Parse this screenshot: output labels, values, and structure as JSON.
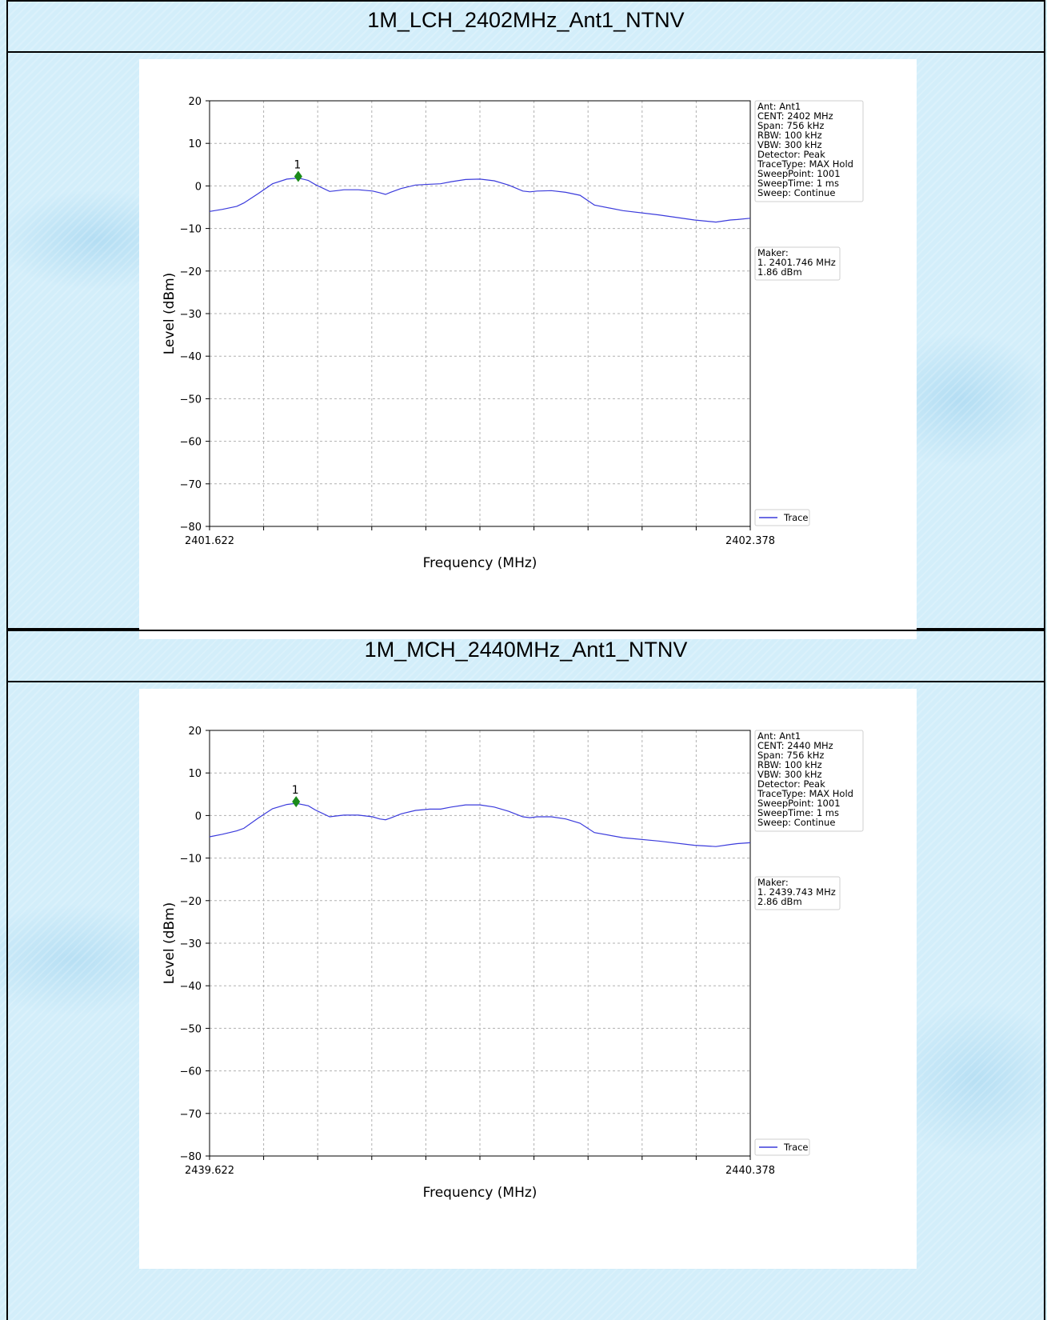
{
  "panels": [
    {
      "title": "1M_LCH_2402MHz_Ant1_NTNV",
      "chart_data": {
        "type": "line",
        "xlabel": "Frequency (MHz)",
        "ylabel": "Level (dBm)",
        "xlim": [
          2401.622,
          2402.378
        ],
        "ylim": [
          -80,
          20
        ],
        "x_tick_labels": [
          "2401.622",
          "2402.378"
        ],
        "y_ticks": [
          20,
          10,
          0,
          -10,
          -20,
          -30,
          -40,
          -50,
          -60,
          -70,
          -80
        ],
        "y_tick_labels": [
          "20",
          "10",
          "0",
          "−10",
          "−20",
          "−30",
          "−40",
          "−50",
          "−60",
          "−70",
          "−80"
        ],
        "x_grid_count": 10,
        "grid": true,
        "trace_color": "#3b3bdc",
        "marker_color": "#1a8a1a",
        "series": [
          {
            "name": "Trace",
            "x": [
              2401.622,
              2401.64,
              2401.66,
              2401.67,
              2401.69,
              2401.71,
              2401.73,
              2401.746,
              2401.76,
              2401.77,
              2401.79,
              2401.8,
              2401.81,
              2401.83,
              2401.85,
              2401.86,
              2401.868,
              2401.875,
              2401.89,
              2401.91,
              2401.93,
              2401.945,
              2401.96,
              2401.98,
              2402.0,
              2402.02,
              2402.04,
              2402.06,
              2402.07,
              2402.08,
              2402.1,
              2402.12,
              2402.14,
              2402.16,
              2402.2,
              2402.25,
              2402.3,
              2402.33,
              2402.35,
              2402.36,
              2402.378
            ],
            "y": [
              -6.0,
              -5.5,
              -4.8,
              -4.0,
              -1.8,
              0.5,
              1.6,
              1.86,
              1.3,
              0.3,
              -1.3,
              -1.1,
              -0.9,
              -0.9,
              -1.2,
              -1.6,
              -2.0,
              -1.5,
              -0.6,
              0.2,
              0.4,
              0.5,
              1.0,
              1.5,
              1.6,
              1.2,
              0.2,
              -1.2,
              -1.4,
              -1.2,
              -1.1,
              -1.5,
              -2.2,
              -4.5,
              -5.8,
              -6.8,
              -8.0,
              -8.5,
              -8.0,
              -7.9,
              -7.6
            ]
          }
        ],
        "marker": {
          "label": "1",
          "x": 2401.746,
          "y": 1.86
        },
        "info_box": [
          "Ant: Ant1",
          "CENT: 2402 MHz",
          "Span: 756 kHz",
          "RBW: 100 kHz",
          "VBW: 300 kHz",
          "Detector: Peak",
          "TraceType: MAX Hold",
          "SweepPoint: 1001",
          "SweepTime: 1 ms",
          "Sweep: Continue"
        ],
        "maker_box": [
          "Maker:",
          "1. 2401.746 MHz",
          "    1.86 dBm"
        ],
        "legend": {
          "label": "Trace",
          "position": "lower-right-outside"
        }
      }
    },
    {
      "title": "1M_MCH_2440MHz_Ant1_NTNV",
      "chart_data": {
        "type": "line",
        "xlabel": "Frequency (MHz)",
        "ylabel": "Level (dBm)",
        "xlim": [
          2439.622,
          2440.378
        ],
        "ylim": [
          -80,
          20
        ],
        "x_tick_labels": [
          "2439.622",
          "2440.378"
        ],
        "y_ticks": [
          20,
          10,
          0,
          -10,
          -20,
          -30,
          -40,
          -50,
          -60,
          -70,
          -80
        ],
        "y_tick_labels": [
          "20",
          "10",
          "0",
          "−10",
          "−20",
          "−30",
          "−40",
          "−50",
          "−60",
          "−70",
          "−80"
        ],
        "x_grid_count": 10,
        "grid": true,
        "trace_color": "#3b3bdc",
        "marker_color": "#1a8a1a",
        "series": [
          {
            "name": "Trace",
            "x": [
              2439.622,
              2439.64,
              2439.66,
              2439.67,
              2439.69,
              2439.71,
              2439.73,
              2439.743,
              2439.76,
              2439.77,
              2439.79,
              2439.8,
              2439.81,
              2439.83,
              2439.85,
              2439.86,
              2439.868,
              2439.875,
              2439.89,
              2439.91,
              2439.93,
              2439.945,
              2439.96,
              2439.98,
              2440.0,
              2440.02,
              2440.04,
              2440.06,
              2440.07,
              2440.08,
              2440.1,
              2440.12,
              2440.14,
              2440.16,
              2440.2,
              2440.25,
              2440.3,
              2440.33,
              2440.35,
              2440.36,
              2440.378
            ],
            "y": [
              -5.0,
              -4.4,
              -3.6,
              -3.0,
              -0.6,
              1.6,
              2.6,
              2.86,
              2.3,
              1.3,
              -0.3,
              -0.1,
              0.1,
              0.1,
              -0.3,
              -0.8,
              -1.0,
              -0.6,
              0.4,
              1.2,
              1.5,
              1.5,
              2.0,
              2.5,
              2.5,
              2.0,
              1.0,
              -0.3,
              -0.5,
              -0.3,
              -0.3,
              -0.8,
              -1.8,
              -4.0,
              -5.2,
              -6.0,
              -7.0,
              -7.3,
              -6.8,
              -6.6,
              -6.4
            ]
          }
        ],
        "marker": {
          "label": "1",
          "x": 2439.743,
          "y": 2.86
        },
        "info_box": [
          "Ant: Ant1",
          "CENT: 2440 MHz",
          "Span: 756 kHz",
          "RBW: 100 kHz",
          "VBW: 300 kHz",
          "Detector: Peak",
          "TraceType: MAX Hold",
          "SweepPoint: 1001",
          "SweepTime: 1 ms",
          "Sweep: Continue"
        ],
        "maker_box": [
          "Maker:",
          "1. 2439.743 MHz",
          "    2.86 dBm"
        ],
        "legend": {
          "label": "Trace",
          "position": "lower-right-outside"
        }
      }
    }
  ]
}
